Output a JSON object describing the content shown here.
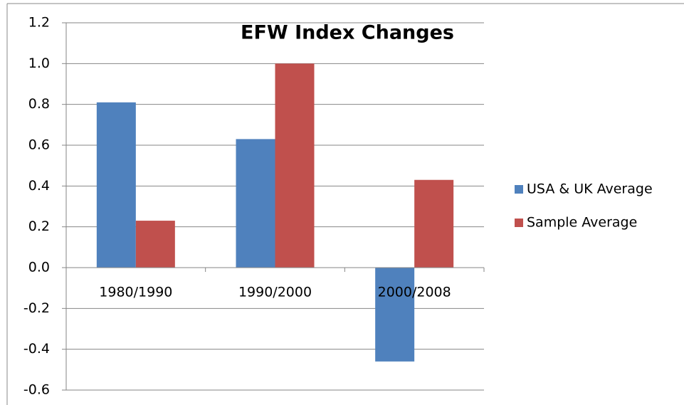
{
  "chart_data": {
    "type": "bar",
    "title": "EFW Index Changes",
    "categories": [
      "1980/1990",
      "1990/2000",
      "2000/2008"
    ],
    "series": [
      {
        "name": "USA & UK Average",
        "color": "#4f81bd",
        "values": [
          0.81,
          0.63,
          -0.46
        ]
      },
      {
        "name": "Sample Average",
        "color": "#c0504d",
        "values": [
          0.23,
          1.0,
          0.43
        ]
      }
    ],
    "ylim": [
      -0.6,
      1.2
    ],
    "yticks": [
      -0.6,
      -0.4,
      -0.2,
      {
        "value": 0,
        "label": "0.0"
      },
      0.2,
      0.4,
      0.6,
      0.8,
      {
        "value": 1,
        "label": "1.0"
      },
      1.2
    ],
    "grid": true,
    "legend": "right"
  }
}
